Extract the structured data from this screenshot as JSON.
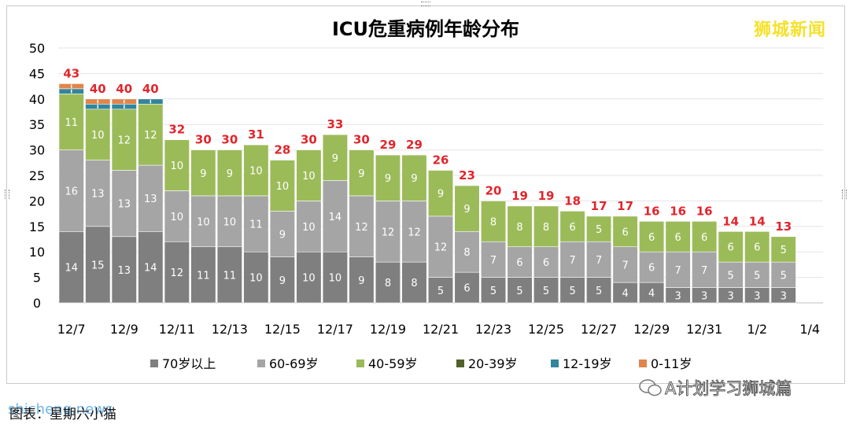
{
  "chart_data": {
    "type": "bar",
    "stacked": true,
    "title": "ICU危重病例年龄分布",
    "categories": [
      "12/7",
      "12/8",
      "12/9",
      "12/10",
      "12/11",
      "12/12",
      "12/13",
      "12/14",
      "12/15",
      "12/16",
      "12/17",
      "12/18",
      "12/19",
      "12/20",
      "12/21",
      "12/22",
      "12/23",
      "12/24",
      "12/25",
      "12/26",
      "12/27",
      "12/28",
      "12/29",
      "12/30",
      "12/31",
      "1/1",
      "1/2",
      "1/3",
      "1/4"
    ],
    "x_tick_labels": [
      "12/7",
      "12/9",
      "12/11",
      "12/13",
      "12/15",
      "12/17",
      "12/19",
      "12/21",
      "12/23",
      "12/25",
      "12/27",
      "12/29",
      "12/31",
      "1/2",
      "1/4"
    ],
    "y_ticks": [
      0,
      5,
      10,
      15,
      20,
      25,
      30,
      35,
      40,
      45,
      50
    ],
    "ylim": [
      0,
      50
    ],
    "grid": true,
    "legend_position": "bottom",
    "series": [
      {
        "name": "70岁以上",
        "color": "#7f7f7f",
        "label_color": "#ffffff",
        "values": [
          14,
          15,
          13,
          14,
          12,
          11,
          11,
          10,
          9,
          10,
          10,
          9,
          8,
          8,
          5,
          6,
          5,
          5,
          5,
          5,
          5,
          4,
          4,
          3,
          3,
          3,
          3,
          3,
          null
        ]
      },
      {
        "name": "60-69岁",
        "color": "#a5a5a5",
        "label_color": "#ffffff",
        "values": [
          16,
          13,
          13,
          13,
          10,
          10,
          10,
          11,
          9,
          10,
          14,
          12,
          12,
          12,
          12,
          8,
          7,
          6,
          6,
          7,
          7,
          7,
          6,
          7,
          7,
          5,
          5,
          5,
          null
        ]
      },
      {
        "name": "40-59岁",
        "color": "#9bbb59",
        "label_color": "#ffffff",
        "values": [
          11,
          10,
          12,
          12,
          10,
          9,
          9,
          10,
          10,
          10,
          9,
          9,
          9,
          9,
          9,
          9,
          8,
          8,
          8,
          6,
          5,
          6,
          6,
          6,
          6,
          6,
          6,
          5,
          null
        ]
      },
      {
        "name": "20-39岁",
        "color": "#4f6228",
        "label_color": "#ffffff",
        "values": [
          0,
          0,
          0,
          0,
          0,
          0,
          0,
          0,
          0,
          0,
          0,
          0,
          0,
          0,
          0,
          0,
          0,
          0,
          0,
          0,
          0,
          0,
          0,
          0,
          0,
          0,
          0,
          0,
          null
        ]
      },
      {
        "name": "12-19岁",
        "color": "#31859c",
        "label_color": "#ffffff",
        "values": [
          1,
          1,
          1,
          1,
          0,
          0,
          0,
          0,
          0,
          0,
          0,
          0,
          0,
          0,
          0,
          0,
          0,
          0,
          0,
          0,
          0,
          0,
          0,
          0,
          0,
          0,
          0,
          0,
          null
        ]
      },
      {
        "name": "0-11岁",
        "color": "#e0864b",
        "label_color": "#ffffff",
        "values": [
          1,
          1,
          1,
          0,
          0,
          0,
          0,
          0,
          0,
          0,
          0,
          0,
          0,
          0,
          0,
          0,
          0,
          0,
          0,
          0,
          0,
          0,
          0,
          0,
          0,
          0,
          0,
          0,
          null
        ]
      }
    ],
    "totals": [
      43,
      40,
      40,
      40,
      32,
      30,
      30,
      31,
      28,
      30,
      33,
      30,
      29,
      29,
      26,
      23,
      20,
      19,
      19,
      18,
      17,
      17,
      16,
      16,
      16,
      14,
      14,
      13,
      null
    ],
    "totals_color": "#e0262c"
  },
  "overlay": {
    "watermark": "狮城新闻",
    "brand": "shicheng.news",
    "caption": "图表：星期六小猫",
    "wechat": "A计划学习狮城篇"
  }
}
